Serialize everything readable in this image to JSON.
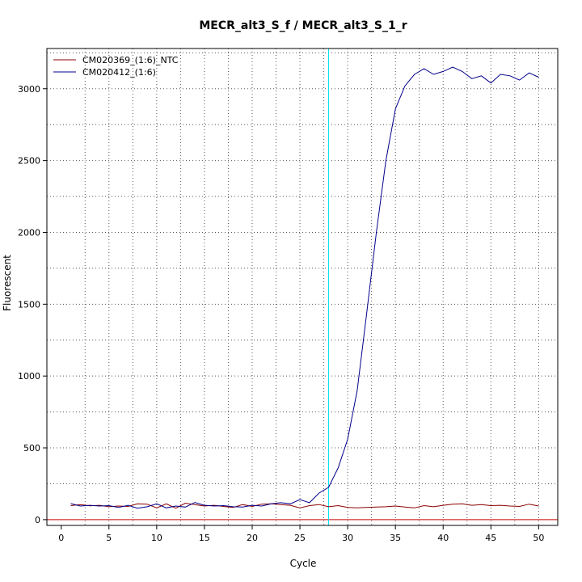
{
  "chart_data": {
    "type": "line",
    "title": "MECR_alt3_S_f / MECR_alt3_S_1_r",
    "xlabel": "Cycle",
    "ylabel": "Fluorescent",
    "xlim": [
      -1.5,
      52
    ],
    "ylim": [
      -40,
      3280
    ],
    "x_ticks": [
      0,
      5,
      10,
      15,
      20,
      25,
      30,
      35,
      40,
      45,
      50
    ],
    "y_ticks": [
      0,
      500,
      1000,
      1500,
      2000,
      2500,
      3000
    ],
    "grid": "dotted",
    "legend_position": "top-left",
    "threshold_x": 28,
    "threshold_color": "#00e5ee",
    "baseline_y": 0,
    "baseline_color": "#cc0000",
    "x": [
      1,
      2,
      3,
      4,
      5,
      6,
      7,
      8,
      9,
      10,
      11,
      12,
      13,
      14,
      15,
      16,
      17,
      18,
      19,
      20,
      21,
      22,
      23,
      24,
      25,
      26,
      27,
      28,
      29,
      30,
      31,
      32,
      33,
      34,
      35,
      36,
      37,
      38,
      39,
      40,
      41,
      42,
      43,
      44,
      45,
      46,
      47,
      48,
      49,
      50
    ],
    "series": [
      {
        "name": "CM020369_(1:6)_NTC",
        "color": "#8b0000",
        "values": [
          98,
          105,
          96,
          100,
          90,
          95,
          92,
          110,
          108,
          82,
          110,
          80,
          115,
          105,
          95,
          100,
          92,
          85,
          105,
          92,
          108,
          110,
          105,
          100,
          82,
          98,
          105,
          90,
          98,
          85,
          82,
          85,
          88,
          90,
          95,
          88,
          82,
          98,
          90,
          100,
          108,
          110,
          100,
          105,
          98,
          100,
          95,
          92,
          108,
          95
        ]
      },
      {
        "name": "CM020412_(1:6)",
        "color": "#00008b",
        "values": [
          112,
          95,
          100,
          95,
          98,
          85,
          100,
          80,
          90,
          110,
          82,
          95,
          88,
          120,
          100,
          95,
          98,
          90,
          88,
          100,
          95,
          110,
          118,
          110,
          140,
          118,
          185,
          225,
          360,
          560,
          900,
          1440,
          2000,
          2500,
          2860,
          3020,
          3100,
          3140,
          3100,
          3120,
          3150,
          3120,
          3070,
          3090,
          3040,
          3100,
          3090,
          3060,
          3110,
          3080
        ]
      }
    ]
  }
}
